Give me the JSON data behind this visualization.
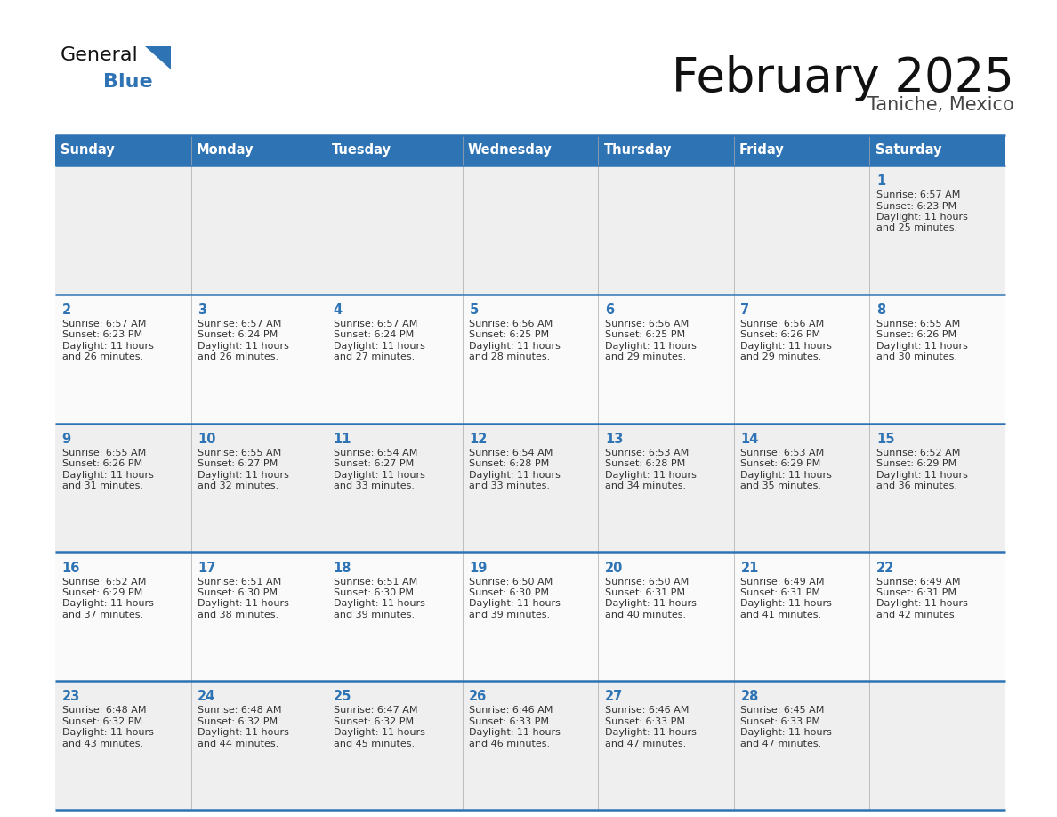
{
  "title": "February 2025",
  "subtitle": "Taniche, Mexico",
  "header_color": "#2E74B5",
  "header_text_color": "#FFFFFF",
  "days_of_week": [
    "Sunday",
    "Monday",
    "Tuesday",
    "Wednesday",
    "Thursday",
    "Friday",
    "Saturday"
  ],
  "cell_bg_even": "#EFEFEF",
  "cell_bg_odd": "#FAFAFA",
  "day_number_color": "#2E74B5",
  "text_color": "#333333",
  "line_color": "#2E74B5",
  "title_color": "#111111",
  "subtitle_color": "#444444",
  "logo_general_color": "#111111",
  "logo_blue_color": "#2E74B5",
  "logo_triangle_color": "#2E74B5",
  "calendar_data": [
    [
      null,
      null,
      null,
      null,
      null,
      null,
      {
        "day": 1,
        "sunrise": "6:57 AM",
        "sunset": "6:23 PM",
        "daylight": "11 hours\nand 25 minutes."
      }
    ],
    [
      {
        "day": 2,
        "sunrise": "6:57 AM",
        "sunset": "6:23 PM",
        "daylight": "11 hours\nand 26 minutes."
      },
      {
        "day": 3,
        "sunrise": "6:57 AM",
        "sunset": "6:24 PM",
        "daylight": "11 hours\nand 26 minutes."
      },
      {
        "day": 4,
        "sunrise": "6:57 AM",
        "sunset": "6:24 PM",
        "daylight": "11 hours\nand 27 minutes."
      },
      {
        "day": 5,
        "sunrise": "6:56 AM",
        "sunset": "6:25 PM",
        "daylight": "11 hours\nand 28 minutes."
      },
      {
        "day": 6,
        "sunrise": "6:56 AM",
        "sunset": "6:25 PM",
        "daylight": "11 hours\nand 29 minutes."
      },
      {
        "day": 7,
        "sunrise": "6:56 AM",
        "sunset": "6:26 PM",
        "daylight": "11 hours\nand 29 minutes."
      },
      {
        "day": 8,
        "sunrise": "6:55 AM",
        "sunset": "6:26 PM",
        "daylight": "11 hours\nand 30 minutes."
      }
    ],
    [
      {
        "day": 9,
        "sunrise": "6:55 AM",
        "sunset": "6:26 PM",
        "daylight": "11 hours\nand 31 minutes."
      },
      {
        "day": 10,
        "sunrise": "6:55 AM",
        "sunset": "6:27 PM",
        "daylight": "11 hours\nand 32 minutes."
      },
      {
        "day": 11,
        "sunrise": "6:54 AM",
        "sunset": "6:27 PM",
        "daylight": "11 hours\nand 33 minutes."
      },
      {
        "day": 12,
        "sunrise": "6:54 AM",
        "sunset": "6:28 PM",
        "daylight": "11 hours\nand 33 minutes."
      },
      {
        "day": 13,
        "sunrise": "6:53 AM",
        "sunset": "6:28 PM",
        "daylight": "11 hours\nand 34 minutes."
      },
      {
        "day": 14,
        "sunrise": "6:53 AM",
        "sunset": "6:29 PM",
        "daylight": "11 hours\nand 35 minutes."
      },
      {
        "day": 15,
        "sunrise": "6:52 AM",
        "sunset": "6:29 PM",
        "daylight": "11 hours\nand 36 minutes."
      }
    ],
    [
      {
        "day": 16,
        "sunrise": "6:52 AM",
        "sunset": "6:29 PM",
        "daylight": "11 hours\nand 37 minutes."
      },
      {
        "day": 17,
        "sunrise": "6:51 AM",
        "sunset": "6:30 PM",
        "daylight": "11 hours\nand 38 minutes."
      },
      {
        "day": 18,
        "sunrise": "6:51 AM",
        "sunset": "6:30 PM",
        "daylight": "11 hours\nand 39 minutes."
      },
      {
        "day": 19,
        "sunrise": "6:50 AM",
        "sunset": "6:30 PM",
        "daylight": "11 hours\nand 39 minutes."
      },
      {
        "day": 20,
        "sunrise": "6:50 AM",
        "sunset": "6:31 PM",
        "daylight": "11 hours\nand 40 minutes."
      },
      {
        "day": 21,
        "sunrise": "6:49 AM",
        "sunset": "6:31 PM",
        "daylight": "11 hours\nand 41 minutes."
      },
      {
        "day": 22,
        "sunrise": "6:49 AM",
        "sunset": "6:31 PM",
        "daylight": "11 hours\nand 42 minutes."
      }
    ],
    [
      {
        "day": 23,
        "sunrise": "6:48 AM",
        "sunset": "6:32 PM",
        "daylight": "11 hours\nand 43 minutes."
      },
      {
        "day": 24,
        "sunrise": "6:48 AM",
        "sunset": "6:32 PM",
        "daylight": "11 hours\nand 44 minutes."
      },
      {
        "day": 25,
        "sunrise": "6:47 AM",
        "sunset": "6:32 PM",
        "daylight": "11 hours\nand 45 minutes."
      },
      {
        "day": 26,
        "sunrise": "6:46 AM",
        "sunset": "6:33 PM",
        "daylight": "11 hours\nand 46 minutes."
      },
      {
        "day": 27,
        "sunrise": "6:46 AM",
        "sunset": "6:33 PM",
        "daylight": "11 hours\nand 47 minutes."
      },
      {
        "day": 28,
        "sunrise": "6:45 AM",
        "sunset": "6:33 PM",
        "daylight": "11 hours\nand 47 minutes."
      },
      null
    ]
  ]
}
